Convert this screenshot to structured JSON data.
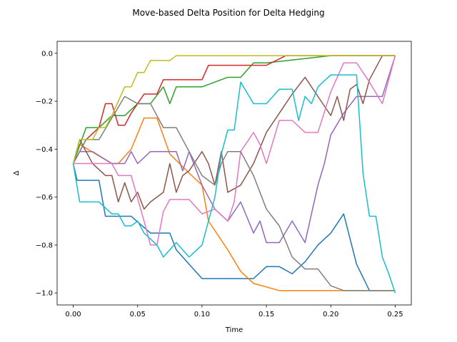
{
  "chart_data": {
    "type": "line",
    "title": "Move-based Delta Position for Delta Hedging",
    "xlabel": "Time",
    "ylabel": "Δ",
    "xlim": [
      -0.0125,
      0.2625
    ],
    "ylim": [
      -1.05,
      0.05
    ],
    "xticks": [
      0.0,
      0.05,
      0.1,
      0.15,
      0.2,
      0.25
    ],
    "xtick_labels": [
      "0.00",
      "0.05",
      "0.10",
      "0.15",
      "0.20",
      "0.25"
    ],
    "yticks": [
      0.0,
      -0.2,
      -0.4,
      -0.6,
      -0.8,
      -1.0
    ],
    "ytick_labels": [
      "0.0",
      "−0.2",
      "−0.4",
      "−0.6",
      "−0.8",
      "−1.0"
    ],
    "grid": false,
    "series": [
      {
        "color": "#1f77b4",
        "x": [
          0,
          0.003,
          0.02,
          0.025,
          0.045,
          0.06,
          0.075,
          0.08,
          0.09,
          0.1,
          0.14,
          0.15,
          0.16,
          0.17,
          0.18,
          0.19,
          0.2,
          0.21,
          0.22,
          0.23,
          0.25
        ],
        "y": [
          -0.46,
          -0.53,
          -0.53,
          -0.68,
          -0.68,
          -0.75,
          -0.75,
          -0.82,
          -0.88,
          -0.94,
          -0.94,
          -0.89,
          -0.89,
          -0.92,
          -0.87,
          -0.8,
          -0.75,
          -0.67,
          -0.88,
          -0.99,
          -0.99
        ]
      },
      {
        "color": "#ff7f0e",
        "x": [
          0,
          0.005,
          0.03,
          0.035,
          0.045,
          0.055,
          0.065,
          0.075,
          0.09,
          0.1,
          0.105,
          0.12,
          0.13,
          0.14,
          0.16,
          0.2,
          0.25
        ],
        "y": [
          -0.46,
          -0.38,
          -0.46,
          -0.46,
          -0.4,
          -0.27,
          -0.27,
          -0.42,
          -0.5,
          -0.55,
          -0.7,
          -0.82,
          -0.91,
          -0.96,
          -0.99,
          -0.99,
          -0.99
        ]
      },
      {
        "color": "#2ca02c",
        "x": [
          0,
          0.01,
          0.02,
          0.03,
          0.04,
          0.05,
          0.06,
          0.07,
          0.075,
          0.08,
          0.1,
          0.12,
          0.13,
          0.14,
          0.15,
          0.2,
          0.25
        ],
        "y": [
          -0.46,
          -0.31,
          -0.31,
          -0.26,
          -0.26,
          -0.21,
          -0.21,
          -0.14,
          -0.21,
          -0.14,
          -0.14,
          -0.1,
          -0.1,
          -0.04,
          -0.04,
          -0.01,
          -0.01
        ]
      },
      {
        "color": "#d62728",
        "x": [
          0,
          0.01,
          0.02,
          0.025,
          0.03,
          0.035,
          0.04,
          0.045,
          0.05,
          0.055,
          0.065,
          0.07,
          0.1,
          0.105,
          0.15,
          0.165,
          0.2,
          0.25
        ],
        "y": [
          -0.46,
          -0.36,
          -0.31,
          -0.21,
          -0.21,
          -0.3,
          -0.3,
          -0.25,
          -0.21,
          -0.17,
          -0.17,
          -0.11,
          -0.11,
          -0.05,
          -0.05,
          -0.01,
          -0.01,
          -0.01
        ]
      },
      {
        "color": "#9467bd",
        "x": [
          0,
          0.005,
          0.015,
          0.03,
          0.04,
          0.045,
          0.05,
          0.06,
          0.08,
          0.085,
          0.09,
          0.1,
          0.11,
          0.12,
          0.13,
          0.14,
          0.145,
          0.15,
          0.16,
          0.17,
          0.18,
          0.19,
          0.195,
          0.2,
          0.21,
          0.22,
          0.24,
          0.25
        ],
        "y": [
          -0.46,
          -0.41,
          -0.41,
          -0.46,
          -0.46,
          -0.41,
          -0.46,
          -0.41,
          -0.41,
          -0.49,
          -0.41,
          -0.55,
          -0.65,
          -0.7,
          -0.62,
          -0.75,
          -0.7,
          -0.79,
          -0.79,
          -0.7,
          -0.79,
          -0.55,
          -0.46,
          -0.34,
          -0.25,
          -0.18,
          -0.18,
          -0.01
        ]
      },
      {
        "color": "#8c564b",
        "x": [
          0,
          0.005,
          0.015,
          0.025,
          0.03,
          0.035,
          0.04,
          0.045,
          0.05,
          0.055,
          0.06,
          0.07,
          0.075,
          0.08,
          0.085,
          0.09,
          0.1,
          0.105,
          0.11,
          0.115,
          0.12,
          0.13,
          0.14,
          0.15,
          0.16,
          0.17,
          0.18,
          0.19,
          0.2,
          0.205,
          0.21,
          0.215,
          0.22,
          0.225,
          0.23,
          0.24,
          0.25
        ],
        "y": [
          -0.46,
          -0.36,
          -0.46,
          -0.51,
          -0.51,
          -0.62,
          -0.54,
          -0.62,
          -0.58,
          -0.65,
          -0.62,
          -0.58,
          -0.46,
          -0.58,
          -0.51,
          -0.49,
          -0.41,
          -0.46,
          -0.55,
          -0.41,
          -0.58,
          -0.55,
          -0.46,
          -0.33,
          -0.25,
          -0.17,
          -0.1,
          -0.18,
          -0.26,
          -0.18,
          -0.28,
          -0.15,
          -0.13,
          -0.21,
          -0.11,
          -0.01,
          -0.01
        ]
      },
      {
        "color": "#e377c2",
        "x": [
          0,
          0.01,
          0.02,
          0.03,
          0.035,
          0.045,
          0.055,
          0.06,
          0.065,
          0.07,
          0.075,
          0.08,
          0.09,
          0.1,
          0.11,
          0.12,
          0.125,
          0.13,
          0.14,
          0.145,
          0.15,
          0.16,
          0.17,
          0.18,
          0.19,
          0.2,
          0.21,
          0.22,
          0.23,
          0.24,
          0.25
        ],
        "y": [
          -0.46,
          -0.46,
          -0.46,
          -0.46,
          -0.51,
          -0.51,
          -0.7,
          -0.8,
          -0.8,
          -0.66,
          -0.61,
          -0.61,
          -0.61,
          -0.67,
          -0.65,
          -0.7,
          -0.62,
          -0.41,
          -0.33,
          -0.38,
          -0.46,
          -0.28,
          -0.28,
          -0.33,
          -0.33,
          -0.16,
          -0.04,
          -0.04,
          -0.12,
          -0.21,
          -0.01
        ]
      },
      {
        "color": "#7f7f7f",
        "x": [
          0,
          0.005,
          0.01,
          0.02,
          0.04,
          0.05,
          0.06,
          0.07,
          0.08,
          0.09,
          0.095,
          0.1,
          0.11,
          0.115,
          0.12,
          0.13,
          0.14,
          0.15,
          0.16,
          0.17,
          0.18,
          0.19,
          0.2,
          0.21,
          0.25
        ],
        "y": [
          -0.46,
          -0.41,
          -0.36,
          -0.36,
          -0.18,
          -0.21,
          -0.21,
          -0.31,
          -0.31,
          -0.41,
          -0.46,
          -0.51,
          -0.55,
          -0.46,
          -0.41,
          -0.41,
          -0.51,
          -0.65,
          -0.72,
          -0.85,
          -0.9,
          -0.9,
          -0.97,
          -0.99,
          -0.99
        ]
      },
      {
        "color": "#bcbd22",
        "x": [
          0,
          0.005,
          0.01,
          0.015,
          0.02,
          0.025,
          0.03,
          0.035,
          0.04,
          0.045,
          0.05,
          0.055,
          0.06,
          0.065,
          0.07,
          0.075,
          0.08,
          0.1,
          0.12,
          0.15,
          0.2,
          0.25
        ],
        "y": [
          -0.46,
          -0.36,
          -0.36,
          -0.36,
          -0.31,
          -0.31,
          -0.26,
          -0.2,
          -0.14,
          -0.14,
          -0.08,
          -0.08,
          -0.03,
          -0.03,
          -0.03,
          -0.03,
          -0.01,
          -0.01,
          -0.01,
          -0.01,
          -0.01,
          -0.01
        ]
      },
      {
        "color": "#17becf",
        "x": [
          0,
          0.005,
          0.02,
          0.03,
          0.035,
          0.04,
          0.045,
          0.05,
          0.055,
          0.065,
          0.07,
          0.08,
          0.09,
          0.1,
          0.11,
          0.115,
          0.12,
          0.125,
          0.13,
          0.14,
          0.15,
          0.155,
          0.16,
          0.17,
          0.175,
          0.18,
          0.185,
          0.19,
          0.2,
          0.21,
          0.22,
          0.225,
          0.23,
          0.235,
          0.24,
          0.245,
          0.25
        ],
        "y": [
          -0.46,
          -0.62,
          -0.62,
          -0.67,
          -0.67,
          -0.72,
          -0.72,
          -0.7,
          -0.75,
          -0.8,
          -0.85,
          -0.79,
          -0.85,
          -0.8,
          -0.6,
          -0.42,
          -0.32,
          -0.32,
          -0.12,
          -0.21,
          -0.21,
          -0.18,
          -0.15,
          -0.15,
          -0.28,
          -0.18,
          -0.21,
          -0.14,
          -0.09,
          -0.09,
          -0.09,
          -0.5,
          -0.68,
          -0.68,
          -0.85,
          -0.92,
          -1.0
        ]
      }
    ]
  }
}
